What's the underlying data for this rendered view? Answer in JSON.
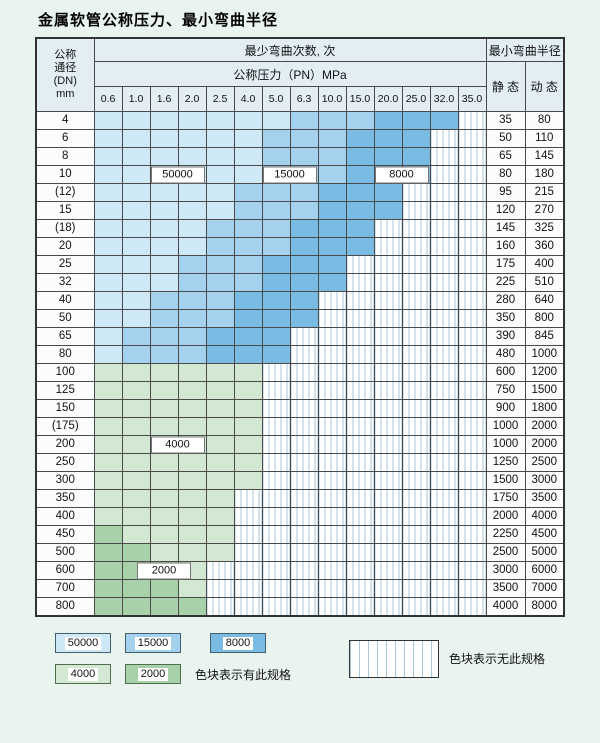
{
  "chart_data": {
    "type": "heatmap",
    "title": "金属软管公称压力、最小弯曲半径",
    "xlabel": "公称压力（PN）MPa",
    "ylabel": "公称通径 (DN) mm",
    "columns": [
      "0.6",
      "1.0",
      "1.6",
      "2.0",
      "2.5",
      "4.0",
      "5.0",
      "6.3",
      "10.0",
      "15.0",
      "20.0",
      "25.0",
      "32.0",
      "35.0"
    ],
    "cell_codes": {
      "0": "无此规格",
      "1": "50000",
      "2": "15000",
      "3": "8000",
      "4": "4000",
      "5": "2000"
    },
    "rows": [
      {
        "dn": "4",
        "static": "35",
        "dynamic": "80",
        "cells": [
          1,
          1,
          1,
          1,
          1,
          1,
          1,
          2,
          2,
          2,
          3,
          3,
          3,
          0
        ]
      },
      {
        "dn": "6",
        "static": "50",
        "dynamic": "110",
        "cells": [
          1,
          1,
          1,
          1,
          1,
          1,
          2,
          2,
          2,
          3,
          3,
          3,
          0,
          0
        ]
      },
      {
        "dn": "8",
        "static": "65",
        "dynamic": "145",
        "cells": [
          1,
          1,
          1,
          1,
          1,
          1,
          2,
          2,
          2,
          3,
          3,
          3,
          0,
          0
        ]
      },
      {
        "dn": "10",
        "static": "80",
        "dynamic": "180",
        "cells": [
          1,
          1,
          1,
          1,
          1,
          1,
          2,
          2,
          2,
          3,
          3,
          3,
          0,
          0
        ]
      },
      {
        "dn": "(12)",
        "static": "95",
        "dynamic": "215",
        "cells": [
          1,
          1,
          1,
          1,
          1,
          2,
          2,
          2,
          3,
          3,
          3,
          0,
          0,
          0
        ]
      },
      {
        "dn": "15",
        "static": "120",
        "dynamic": "270",
        "cells": [
          1,
          1,
          1,
          1,
          1,
          2,
          2,
          2,
          3,
          3,
          3,
          0,
          0,
          0
        ]
      },
      {
        "dn": "(18)",
        "static": "145",
        "dynamic": "325",
        "cells": [
          1,
          1,
          1,
          1,
          2,
          2,
          2,
          3,
          3,
          3,
          0,
          0,
          0,
          0
        ]
      },
      {
        "dn": "20",
        "static": "160",
        "dynamic": "360",
        "cells": [
          1,
          1,
          1,
          1,
          2,
          2,
          2,
          3,
          3,
          3,
          0,
          0,
          0,
          0
        ]
      },
      {
        "dn": "25",
        "static": "175",
        "dynamic": "400",
        "cells": [
          1,
          1,
          1,
          2,
          2,
          2,
          3,
          3,
          3,
          0,
          0,
          0,
          0,
          0
        ]
      },
      {
        "dn": "32",
        "static": "225",
        "dynamic": "510",
        "cells": [
          1,
          1,
          1,
          2,
          2,
          2,
          3,
          3,
          3,
          0,
          0,
          0,
          0,
          0
        ]
      },
      {
        "dn": "40",
        "static": "280",
        "dynamic": "640",
        "cells": [
          1,
          1,
          2,
          2,
          2,
          3,
          3,
          3,
          0,
          0,
          0,
          0,
          0,
          0
        ]
      },
      {
        "dn": "50",
        "static": "350",
        "dynamic": "800",
        "cells": [
          1,
          1,
          2,
          2,
          2,
          3,
          3,
          3,
          0,
          0,
          0,
          0,
          0,
          0
        ]
      },
      {
        "dn": "65",
        "static": "390",
        "dynamic": "845",
        "cells": [
          1,
          2,
          2,
          2,
          3,
          3,
          3,
          0,
          0,
          0,
          0,
          0,
          0,
          0
        ]
      },
      {
        "dn": "80",
        "static": "480",
        "dynamic": "1000",
        "cells": [
          1,
          2,
          2,
          2,
          3,
          3,
          3,
          0,
          0,
          0,
          0,
          0,
          0,
          0
        ]
      },
      {
        "dn": "100",
        "static": "600",
        "dynamic": "1200",
        "cells": [
          4,
          4,
          4,
          4,
          4,
          4,
          0,
          0,
          0,
          0,
          0,
          0,
          0,
          0
        ]
      },
      {
        "dn": "125",
        "static": "750",
        "dynamic": "1500",
        "cells": [
          4,
          4,
          4,
          4,
          4,
          4,
          0,
          0,
          0,
          0,
          0,
          0,
          0,
          0
        ]
      },
      {
        "dn": "150",
        "static": "900",
        "dynamic": "1800",
        "cells": [
          4,
          4,
          4,
          4,
          4,
          4,
          0,
          0,
          0,
          0,
          0,
          0,
          0,
          0
        ]
      },
      {
        "dn": "(175)",
        "static": "1000",
        "dynamic": "2000",
        "cells": [
          4,
          4,
          4,
          4,
          4,
          4,
          0,
          0,
          0,
          0,
          0,
          0,
          0,
          0
        ]
      },
      {
        "dn": "200",
        "static": "1000",
        "dynamic": "2000",
        "cells": [
          4,
          4,
          4,
          4,
          4,
          4,
          0,
          0,
          0,
          0,
          0,
          0,
          0,
          0
        ]
      },
      {
        "dn": "250",
        "static": "1250",
        "dynamic": "2500",
        "cells": [
          4,
          4,
          4,
          4,
          4,
          4,
          0,
          0,
          0,
          0,
          0,
          0,
          0,
          0
        ]
      },
      {
        "dn": "300",
        "static": "1500",
        "dynamic": "3000",
        "cells": [
          4,
          4,
          4,
          4,
          4,
          4,
          0,
          0,
          0,
          0,
          0,
          0,
          0,
          0
        ]
      },
      {
        "dn": "350",
        "static": "1750",
        "dynamic": "3500",
        "cells": [
          4,
          4,
          4,
          4,
          4,
          0,
          0,
          0,
          0,
          0,
          0,
          0,
          0,
          0
        ]
      },
      {
        "dn": "400",
        "static": "2000",
        "dynamic": "4000",
        "cells": [
          4,
          4,
          4,
          4,
          4,
          0,
          0,
          0,
          0,
          0,
          0,
          0,
          0,
          0
        ]
      },
      {
        "dn": "450",
        "static": "2250",
        "dynamic": "4500",
        "cells": [
          5,
          4,
          4,
          4,
          4,
          0,
          0,
          0,
          0,
          0,
          0,
          0,
          0,
          0
        ]
      },
      {
        "dn": "500",
        "static": "2500",
        "dynamic": "5000",
        "cells": [
          5,
          5,
          4,
          4,
          4,
          0,
          0,
          0,
          0,
          0,
          0,
          0,
          0,
          0
        ]
      },
      {
        "dn": "600",
        "static": "3000",
        "dynamic": "6000",
        "cells": [
          5,
          5,
          5,
          4,
          0,
          0,
          0,
          0,
          0,
          0,
          0,
          0,
          0,
          0
        ]
      },
      {
        "dn": "700",
        "static": "3500",
        "dynamic": "7000",
        "cells": [
          5,
          5,
          5,
          4,
          0,
          0,
          0,
          0,
          0,
          0,
          0,
          0,
          0,
          0
        ]
      },
      {
        "dn": "800",
        "static": "4000",
        "dynamic": "8000",
        "cells": [
          5,
          5,
          5,
          5,
          0,
          0,
          0,
          0,
          0,
          0,
          0,
          0,
          0,
          0
        ]
      }
    ]
  },
  "header": {
    "dn_label_lines": [
      "公称",
      "通径",
      "(DN)",
      "mm"
    ],
    "cycles_label": "最少弯曲次数, 次",
    "pressure_label": "公称压力（PN）MPa",
    "radius_label": "最小弯曲半径",
    "static_label": "静 态",
    "dynamic_label": "动 态"
  },
  "overlays": [
    {
      "text": "50000",
      "dn": "10",
      "col": 2,
      "pos": "edge"
    },
    {
      "text": "15000",
      "dn": "10",
      "col": 6,
      "pos": "edge"
    },
    {
      "text": "8000",
      "dn": "10",
      "col": 10,
      "pos": "edge"
    },
    {
      "text": "4000",
      "dn": "200",
      "col": 2,
      "pos": "edge"
    },
    {
      "text": "2000",
      "dn": "600",
      "col": 2,
      "pos": "center"
    }
  ],
  "legend": {
    "items": [
      {
        "label": "50000",
        "color_key": "c50000"
      },
      {
        "label": "15000",
        "color_key": "c15000"
      },
      {
        "label": "8000",
        "color_key": "c8000"
      },
      {
        "label": "4000",
        "color_key": "c4000"
      },
      {
        "label": "2000",
        "color_key": "c2000"
      }
    ],
    "has_spec_text": "色块表示有此规格",
    "no_spec_text": "色块表示无此规格"
  },
  "colors": {
    "page_bg": "#eaf4ef",
    "header_bg": "#e2eef4",
    "cell_bg": "#fbfdfc",
    "grid_line": "#4a4a4a",
    "c50000": "#cfe8f6",
    "c15000": "#a4d2ee",
    "c8000": "#79bbe2",
    "c4000": "#d3e8d3",
    "c2000": "#a7d1a8",
    "hatch_line": "#a9c9dc"
  }
}
